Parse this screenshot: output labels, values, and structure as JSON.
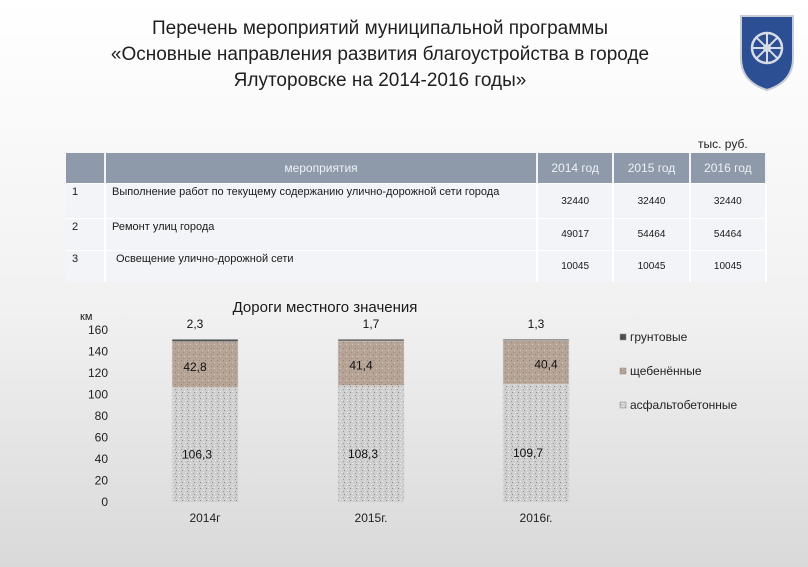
{
  "header": {
    "title_lines": [
      "Перечень мероприятий муниципальной программы",
      "«Основные направления развития благоустройства в городе",
      "Ялуторовске на 2014-2016 годы»"
    ],
    "unit": "тыс. руб."
  },
  "table": {
    "columns": [
      "",
      "мероприятия",
      "2014 год",
      "2015 год",
      "2016 год"
    ],
    "rows": [
      {
        "num": "1",
        "name": "Выполнение работ по текущему содержанию улично-дорожной сети города",
        "v2014": "32440",
        "v2015": "32440",
        "v2016": "32440"
      },
      {
        "num": "2",
        "name": "Ремонт улиц города",
        "v2014": "49017",
        "v2015": "54464",
        "v2016": "54464"
      },
      {
        "num": "3",
        "name": "Освещение улично-дорожной сети",
        "v2014": "10045",
        "v2015": "10045",
        "v2016": "10045"
      }
    ]
  },
  "chart_data": {
    "type": "bar",
    "stacked": true,
    "title": "Дороги местного значения",
    "ylabel": "км",
    "ylim": [
      0,
      160
    ],
    "yticks": [
      0,
      20,
      40,
      60,
      80,
      100,
      120,
      140,
      160
    ],
    "categories": [
      "2014г",
      "2015г.",
      "2016г."
    ],
    "series": [
      {
        "name": "асфальтобетонные",
        "values": [
          106.3,
          108.3,
          109.7
        ],
        "labels": [
          "106,3",
          "108,3",
          "109,7"
        ],
        "color": "#c9c9c9"
      },
      {
        "name": "щебенённые",
        "values": [
          42.8,
          41.4,
          40.4
        ],
        "labels": [
          "42,8",
          "41,4",
          "40,4"
        ],
        "color": "#b4a395"
      },
      {
        "name": "грунтовые",
        "values": [
          2.3,
          1.7,
          1.3
        ],
        "labels": [
          "2,3",
          "1,7",
          "1,3"
        ],
        "color": "#4a4a4a"
      }
    ],
    "legend": "right",
    "grid": false
  }
}
